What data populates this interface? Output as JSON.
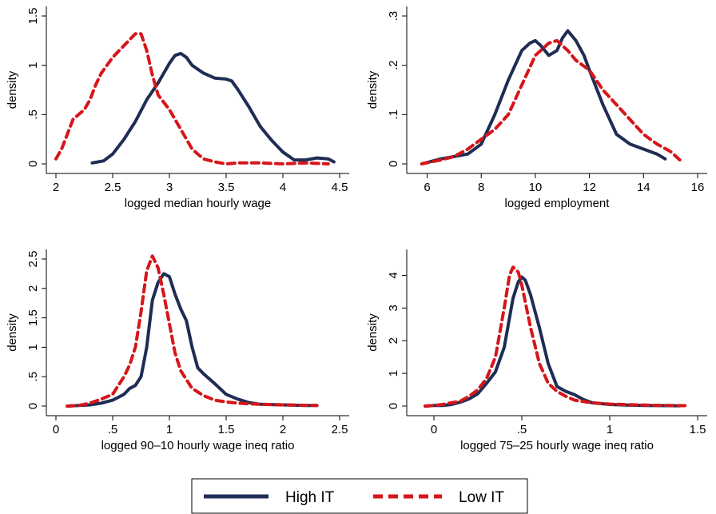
{
  "colors": {
    "high_it": "#1f2d55",
    "low_it": "#d6161a"
  },
  "legend": {
    "placement": "bottom-center",
    "entries": [
      {
        "name": "High IT",
        "color": "#1f2d55",
        "style": "solid"
      },
      {
        "name": "Low IT",
        "color": "#d6161a",
        "style": "dashed"
      }
    ]
  },
  "chart_data": [
    {
      "type": "line",
      "title": "",
      "xlabel": "logged median hourly wage",
      "ylabel": "density",
      "xlim": [
        2,
        4.5
      ],
      "ylim": [
        0,
        1.5
      ],
      "xticks": [
        2,
        2.5,
        3,
        3.5,
        4,
        4.5
      ],
      "xtick_labels": [
        "2",
        "2.5",
        "3",
        "3.5",
        "4",
        "4.5"
      ],
      "yticks": [
        0,
        0.5,
        1,
        1.5
      ],
      "ytick_labels": [
        "0",
        ".5",
        "1",
        "1.5"
      ],
      "grid": false,
      "series": [
        {
          "name": "High IT",
          "style": "solid",
          "x": [
            2.32,
            2.42,
            2.5,
            2.6,
            2.7,
            2.8,
            2.9,
            3.0,
            3.05,
            3.1,
            3.15,
            3.2,
            3.3,
            3.4,
            3.5,
            3.55,
            3.6,
            3.7,
            3.8,
            3.9,
            4.0,
            4.1,
            4.2,
            4.3,
            4.4,
            4.45
          ],
          "y": [
            0.01,
            0.03,
            0.1,
            0.25,
            0.43,
            0.65,
            0.82,
            1.02,
            1.1,
            1.12,
            1.08,
            1.0,
            0.92,
            0.87,
            0.86,
            0.84,
            0.76,
            0.58,
            0.38,
            0.24,
            0.12,
            0.04,
            0.04,
            0.06,
            0.05,
            0.02
          ]
        },
        {
          "name": "Low IT",
          "style": "dashed",
          "x": [
            2.0,
            2.05,
            2.1,
            2.15,
            2.2,
            2.25,
            2.3,
            2.35,
            2.4,
            2.5,
            2.6,
            2.7,
            2.75,
            2.8,
            2.85,
            2.9,
            3.0,
            3.1,
            3.2,
            3.3,
            3.4,
            3.5,
            3.6,
            3.8,
            4.0,
            4.2,
            4.4
          ],
          "y": [
            0.05,
            0.15,
            0.3,
            0.45,
            0.5,
            0.55,
            0.65,
            0.8,
            0.92,
            1.08,
            1.2,
            1.32,
            1.32,
            1.15,
            0.9,
            0.7,
            0.55,
            0.35,
            0.15,
            0.05,
            0.02,
            0.0,
            0.01,
            0.01,
            0.0,
            0.01,
            0.0
          ]
        }
      ]
    },
    {
      "type": "line",
      "title": "",
      "xlabel": "logged employment",
      "ylabel": "density",
      "xlim": [
        5.6,
        16
      ],
      "ylim": [
        0,
        0.3
      ],
      "xticks": [
        6,
        8,
        10,
        12,
        14,
        16
      ],
      "xtick_labels": [
        "6",
        "8",
        "10",
        "12",
        "14",
        "16"
      ],
      "yticks": [
        0,
        0.1,
        0.2,
        0.3
      ],
      "ytick_labels": [
        "0",
        ".1",
        ".2",
        ".3"
      ],
      "grid": false,
      "series": [
        {
          "name": "High IT",
          "style": "solid",
          "x": [
            5.8,
            6.5,
            7.0,
            7.5,
            8.0,
            8.5,
            9.0,
            9.5,
            9.8,
            10.0,
            10.2,
            10.5,
            10.8,
            11.0,
            11.2,
            11.5,
            11.8,
            12.0,
            12.5,
            13.0,
            13.5,
            14.0,
            14.5,
            14.8
          ],
          "y": [
            0.0,
            0.01,
            0.015,
            0.02,
            0.04,
            0.1,
            0.17,
            0.23,
            0.245,
            0.25,
            0.24,
            0.22,
            0.23,
            0.255,
            0.27,
            0.25,
            0.22,
            0.19,
            0.12,
            0.06,
            0.04,
            0.03,
            0.02,
            0.01
          ]
        },
        {
          "name": "Low IT",
          "style": "dashed",
          "x": [
            5.8,
            6.5,
            7.0,
            7.5,
            8.0,
            8.5,
            9.0,
            9.5,
            10.0,
            10.5,
            10.8,
            11.2,
            11.5,
            12.0,
            12.5,
            13.0,
            13.5,
            14.0,
            14.5,
            15.0,
            15.4
          ],
          "y": [
            0.0,
            0.008,
            0.015,
            0.03,
            0.05,
            0.07,
            0.1,
            0.16,
            0.22,
            0.245,
            0.25,
            0.23,
            0.21,
            0.19,
            0.15,
            0.12,
            0.09,
            0.06,
            0.04,
            0.025,
            0.005
          ]
        }
      ]
    },
    {
      "type": "line",
      "title": "",
      "xlabel": "logged 90–10 hourly wage ineq ratio",
      "ylabel": "density",
      "xlim": [
        0,
        2.5
      ],
      "ylim": [
        0,
        2.5
      ],
      "xticks": [
        0,
        0.5,
        1,
        1.5,
        2,
        2.5
      ],
      "xtick_labels": [
        "0",
        ".5",
        "1",
        "1.5",
        "2",
        "2.5"
      ],
      "yticks": [
        0,
        0.5,
        1,
        1.5,
        2,
        2.5
      ],
      "ytick_labels": [
        "0",
        ".5",
        "1",
        "1.5",
        "2",
        "2.5"
      ],
      "grid": false,
      "series": [
        {
          "name": "High IT",
          "style": "solid",
          "x": [
            0.1,
            0.2,
            0.3,
            0.4,
            0.5,
            0.55,
            0.6,
            0.65,
            0.7,
            0.75,
            0.8,
            0.85,
            0.9,
            0.95,
            1.0,
            1.05,
            1.1,
            1.15,
            1.2,
            1.25,
            1.3,
            1.4,
            1.5,
            1.6,
            1.7,
            1.8,
            2.0,
            2.2,
            2.3
          ],
          "y": [
            0.0,
            0.01,
            0.02,
            0.05,
            0.1,
            0.15,
            0.2,
            0.3,
            0.35,
            0.5,
            1.0,
            1.8,
            2.1,
            2.25,
            2.2,
            1.9,
            1.65,
            1.45,
            1.0,
            0.65,
            0.55,
            0.38,
            0.2,
            0.12,
            0.06,
            0.03,
            0.02,
            0.01,
            0.01
          ]
        },
        {
          "name": "Low IT",
          "style": "dashed",
          "x": [
            0.1,
            0.2,
            0.3,
            0.4,
            0.5,
            0.55,
            0.6,
            0.65,
            0.7,
            0.75,
            0.8,
            0.85,
            0.9,
            0.95,
            1.0,
            1.05,
            1.1,
            1.2,
            1.3,
            1.4,
            1.5,
            1.6,
            1.8,
            2.0,
            2.3
          ],
          "y": [
            0.0,
            0.01,
            0.05,
            0.12,
            0.2,
            0.35,
            0.5,
            0.7,
            1.0,
            1.6,
            2.3,
            2.55,
            2.35,
            1.9,
            1.4,
            0.9,
            0.6,
            0.3,
            0.18,
            0.1,
            0.07,
            0.05,
            0.03,
            0.02,
            0.01
          ]
        }
      ]
    },
    {
      "type": "line",
      "title": "",
      "xlabel": "logged 75–25 hourly wage ineq ratio",
      "ylabel": "density",
      "xlim": [
        -0.1,
        1.5
      ],
      "ylim": [
        0,
        4.5
      ],
      "xticks": [
        0,
        0.5,
        1,
        1.5
      ],
      "xtick_labels": [
        "0",
        ".5",
        "1",
        "1.5"
      ],
      "yticks": [
        0,
        1,
        2,
        3,
        4
      ],
      "ytick_labels": [
        "0",
        "1",
        "2",
        "3",
        "4"
      ],
      "grid": false,
      "series": [
        {
          "name": "High IT",
          "style": "solid",
          "x": [
            -0.05,
            0.0,
            0.05,
            0.1,
            0.15,
            0.2,
            0.25,
            0.3,
            0.35,
            0.4,
            0.45,
            0.48,
            0.5,
            0.52,
            0.55,
            0.6,
            0.65,
            0.7,
            0.75,
            0.8,
            0.85,
            0.9,
            1.0,
            1.1,
            1.2,
            1.4
          ],
          "y": [
            0.0,
            0.02,
            0.02,
            0.05,
            0.12,
            0.22,
            0.38,
            0.7,
            1.05,
            1.8,
            3.3,
            3.8,
            3.95,
            3.85,
            3.4,
            2.4,
            1.3,
            0.6,
            0.45,
            0.35,
            0.2,
            0.1,
            0.05,
            0.03,
            0.02,
            0.01
          ]
        },
        {
          "name": "Low IT",
          "style": "dashed",
          "x": [
            -0.05,
            0.0,
            0.05,
            0.1,
            0.15,
            0.2,
            0.25,
            0.3,
            0.35,
            0.4,
            0.43,
            0.45,
            0.48,
            0.5,
            0.55,
            0.6,
            0.65,
            0.7,
            0.75,
            0.8,
            0.9,
            1.0,
            1.2,
            1.45
          ],
          "y": [
            0.0,
            0.02,
            0.05,
            0.1,
            0.15,
            0.3,
            0.5,
            0.85,
            1.5,
            3.0,
            4.0,
            4.25,
            4.1,
            3.7,
            2.4,
            1.3,
            0.7,
            0.45,
            0.3,
            0.18,
            0.1,
            0.06,
            0.03,
            0.01
          ]
        }
      ]
    }
  ]
}
